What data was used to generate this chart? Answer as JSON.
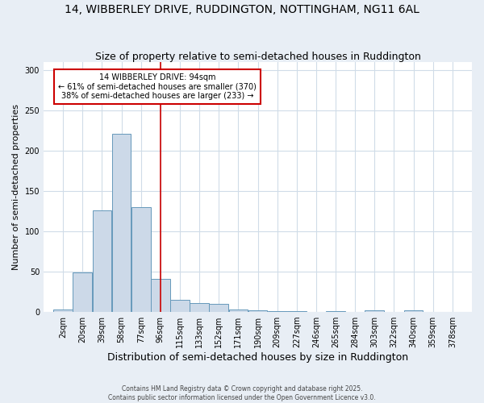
{
  "title": "14, WIBBERLEY DRIVE, RUDDINGTON, NOTTINGHAM, NG11 6AL",
  "subtitle": "Size of property relative to semi-detached houses in Ruddington",
  "xlabel": "Distribution of semi-detached houses by size in Ruddington",
  "ylabel": "Number of semi-detached properties",
  "bar_color": "#ccd9e8",
  "bar_edge_color": "#6699bb",
  "bg_color": "#e8eef5",
  "plot_bg_color": "#ffffff",
  "grid_color": "#d0dce8",
  "categories": [
    "2sqm",
    "20sqm",
    "39sqm",
    "58sqm",
    "77sqm",
    "96sqm",
    "115sqm",
    "133sqm",
    "152sqm",
    "171sqm",
    "190sqm",
    "209sqm",
    "227sqm",
    "246sqm",
    "265sqm",
    "284sqm",
    "303sqm",
    "322sqm",
    "340sqm",
    "359sqm",
    "378sqm"
  ],
  "values": [
    3,
    49,
    126,
    221,
    130,
    41,
    15,
    11,
    10,
    3,
    2,
    1,
    1,
    0,
    1,
    0,
    2,
    0,
    2,
    0,
    0
  ],
  "property_line_color": "#cc0000",
  "property_line_x": 5,
  "annotation_text": "14 WIBBERLEY DRIVE: 94sqm\n← 61% of semi-detached houses are smaller (370)\n38% of semi-detached houses are larger (233) →",
  "annotation_box_color": "#cc0000",
  "ylim": [
    0,
    310
  ],
  "yticks": [
    0,
    50,
    100,
    150,
    200,
    250,
    300
  ],
  "bin_width": 19,
  "footnote": "Contains HM Land Registry data © Crown copyright and database right 2025.\nContains public sector information licensed under the Open Government Licence v3.0.",
  "title_fontsize": 10,
  "subtitle_fontsize": 9,
  "xlabel_fontsize": 9,
  "ylabel_fontsize": 8,
  "tick_fontsize": 7
}
